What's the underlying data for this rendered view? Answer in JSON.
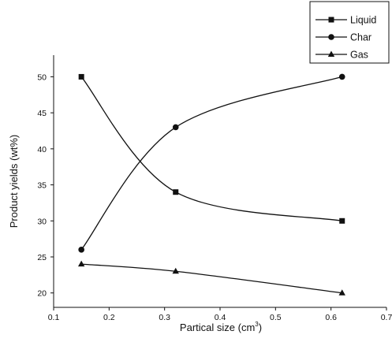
{
  "chart_data": {
    "type": "line",
    "title": "",
    "xlabel": "Partical size (cm",
    "xlabel_sup": "3",
    "xlabel_close": ")",
    "ylabel": "Product yields (wt%)",
    "xlim": [
      0.1,
      0.7
    ],
    "ylim": [
      18,
      53
    ],
    "xticks": [
      "0.1",
      "0.2",
      "0.3",
      "0.4",
      "0.5",
      "0.6",
      "0.7"
    ],
    "yticks": [
      "20",
      "25",
      "30",
      "35",
      "40",
      "45",
      "50"
    ],
    "grid": false,
    "legend_position": "top-right",
    "x": [
      0.15,
      0.32,
      0.62
    ],
    "series": [
      {
        "name": "Liquid",
        "marker": "square",
        "values": [
          50,
          34,
          30
        ]
      },
      {
        "name": "Char",
        "marker": "circle",
        "values": [
          26,
          43,
          50
        ]
      },
      {
        "name": "Gas",
        "marker": "triangle",
        "values": [
          24,
          23,
          20
        ]
      }
    ]
  }
}
